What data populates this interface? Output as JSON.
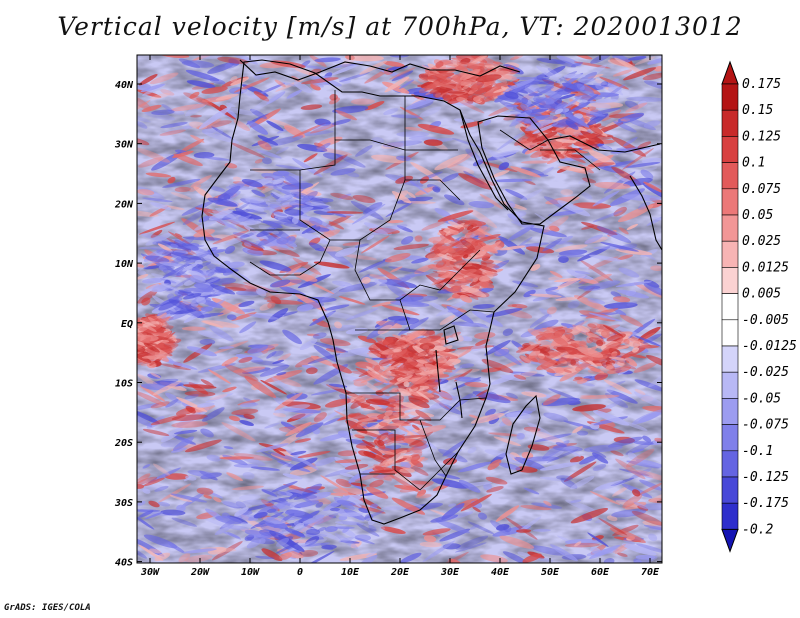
{
  "title": "Vertical velocity [m/s] at 700hPa, VT: 2020013012",
  "credit": "GrADS: IGES/COLA",
  "axes": {
    "x_ticks": [
      "30W",
      "20W",
      "10W",
      "0",
      "10E",
      "20E",
      "30E",
      "40E",
      "50E",
      "60E",
      "70E"
    ],
    "y_ticks": [
      "40N",
      "30N",
      "20N",
      "10N",
      "EQ",
      "10S",
      "20S",
      "30S",
      "40S"
    ]
  },
  "colorbar": {
    "levels": [
      "0.175",
      "0.15",
      "0.125",
      "0.1",
      "0.075",
      "0.05",
      "0.025",
      "0.0125",
      "0.005",
      "-0.005",
      "-0.0125",
      "-0.025",
      "-0.05",
      "-0.075",
      "-0.1",
      "-0.125",
      "-0.175",
      "-0.2"
    ],
    "colors": [
      "#b41414",
      "#c82a2a",
      "#d84040",
      "#e25a5a",
      "#ec7878",
      "#f29696",
      "#f7b4b4",
      "#fbd2d2",
      "#ffffff",
      "#ffffff",
      "#d4d4fa",
      "#b8b8f5",
      "#9c9cf0",
      "#8080ea",
      "#6464e2",
      "#4848d8",
      "#2e2ecc",
      "#1414b4"
    ]
  },
  "colors": {
    "positive": "#d84040",
    "negative": "#4848d8",
    "coast": "#000000"
  }
}
